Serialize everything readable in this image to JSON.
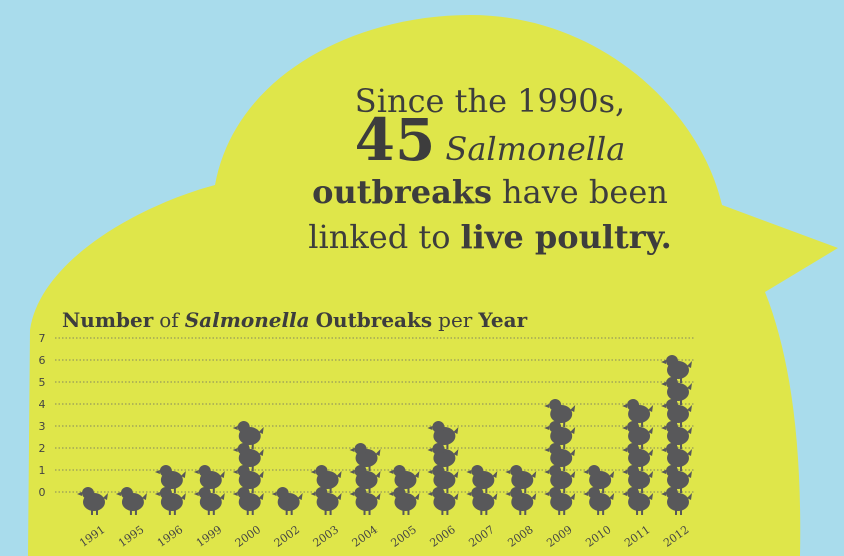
{
  "chart_data": {
    "type": "pictogram",
    "headline": [
      [
        "Since the 1990s,"
      ],
      [
        "45",
        "Salmonella"
      ],
      [
        "outbreaks",
        "have been"
      ],
      [
        "linked to",
        "live poultry",
        "."
      ]
    ],
    "title": [
      "Number",
      "of",
      "Salmonella",
      "Outbreaks",
      "per",
      "Year"
    ],
    "categories": [
      "1991",
      "1995",
      "1996",
      "1999",
      "2000",
      "2002",
      "2003",
      "2004",
      "2005",
      "2006",
      "2007",
      "2008",
      "2009",
      "2010",
      "2011",
      "2012"
    ],
    "values": [
      1,
      1,
      2,
      2,
      4,
      1,
      2,
      3,
      2,
      4,
      2,
      2,
      5,
      2,
      5,
      7
    ],
    "color": "#58585a",
    "ylim": [
      0,
      7
    ],
    "yticks": [
      0,
      1,
      2,
      3,
      4,
      5,
      6,
      7
    ],
    "grid": true
  }
}
